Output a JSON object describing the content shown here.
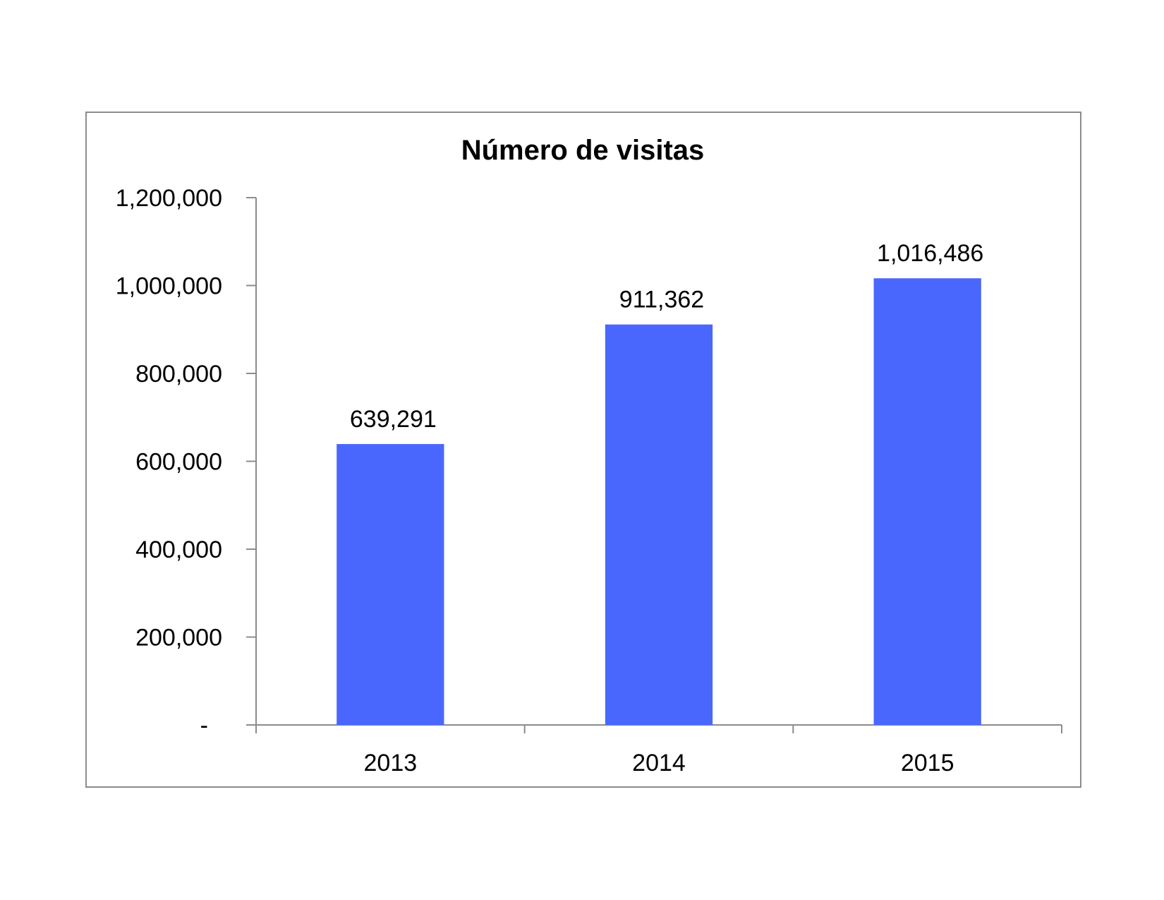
{
  "chart_data": {
    "type": "bar",
    "title": "Número de visitas",
    "xlabel": "",
    "ylabel": "",
    "categories": [
      "2013",
      "2014",
      "2015"
    ],
    "values": [
      639291,
      911362,
      1016486
    ],
    "data_labels": [
      "639,291",
      "911,362",
      "1,016,486"
    ],
    "ylim": [
      0,
      1200000
    ],
    "yticks": [
      0,
      200000,
      400000,
      600000,
      800000,
      1000000,
      1200000
    ],
    "ytick_labels": [
      "-",
      "200,000",
      "400,000",
      "600,000",
      "800,000",
      "1,000,000",
      "1,200,000"
    ],
    "grid": false,
    "legend": "none",
    "bar_color": "#4a67fd",
    "axis_color": "#8c8c8c"
  }
}
